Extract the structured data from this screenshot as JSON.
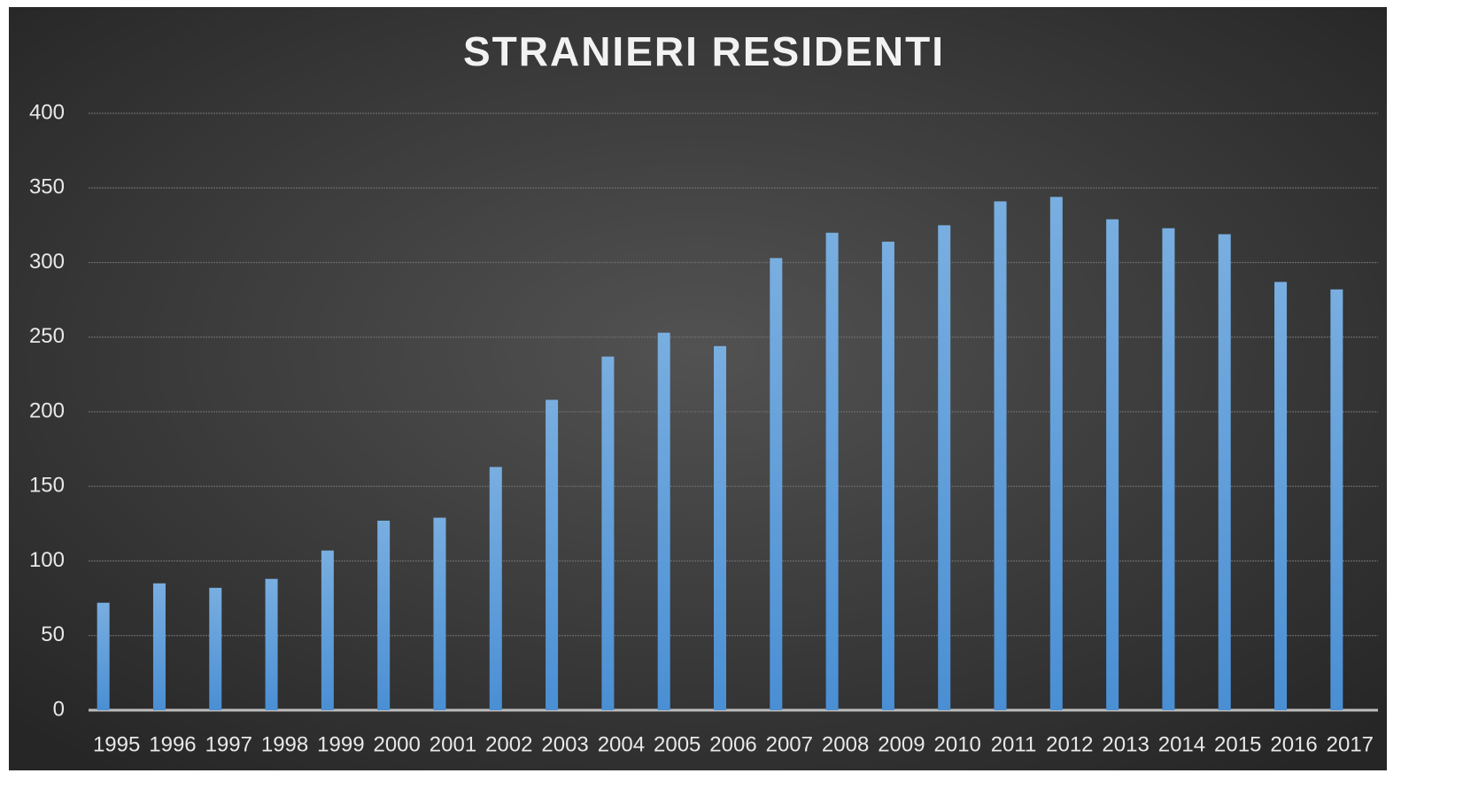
{
  "chart_data": {
    "type": "bar",
    "title": "STRANIERI RESIDENTI",
    "categories": [
      "1995",
      "1996",
      "1997",
      "1998",
      "1999",
      "2000",
      "2001",
      "2002",
      "2003",
      "2004",
      "2005",
      "2006",
      "2007",
      "2008",
      "2009",
      "2010",
      "2011",
      "2012",
      "2013",
      "2014",
      "2015",
      "2016",
      "2017"
    ],
    "values": [
      72,
      85,
      82,
      88,
      107,
      127,
      129,
      163,
      208,
      237,
      253,
      244,
      303,
      320,
      314,
      325,
      341,
      344,
      329,
      323,
      319,
      287,
      282
    ],
    "color": "#5b9bd5",
    "ylim": [
      0,
      400
    ],
    "yticks": [
      0,
      50,
      100,
      150,
      200,
      250,
      300,
      350,
      400
    ],
    "grid": true
  }
}
